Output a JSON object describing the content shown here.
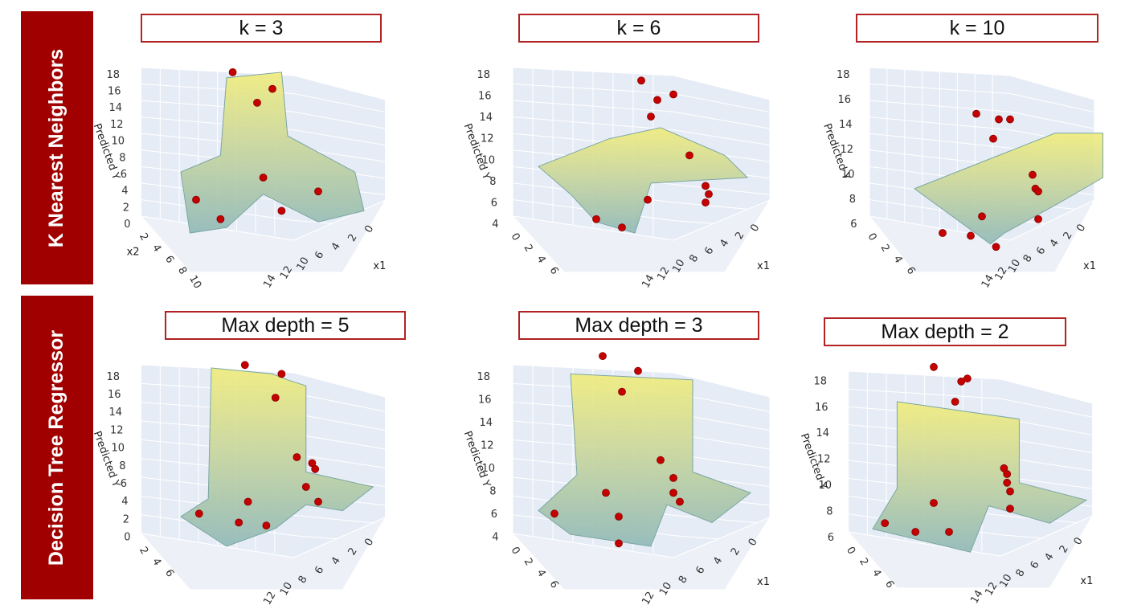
{
  "row_labels": {
    "knn": "K Nearest Neighbors",
    "tree": "Decision Tree Regressor"
  },
  "colors": {
    "row_label_bg": "#a00000",
    "title_border": "#b22222",
    "surface_low": "#8fb8b6",
    "surface_high": "#f0ec7a",
    "point": "#c40000",
    "pane": "#e6ecf5"
  },
  "chart_data": [
    {
      "type": "surface3d",
      "model": "K Nearest Neighbors",
      "title": "k = 3",
      "xlabel": "x1",
      "ylabel": "x2",
      "zlabel": "Predicted Y",
      "z_ticks": [
        "18",
        "16",
        "14",
        "12",
        "10",
        "8",
        "6",
        "4",
        "2",
        "0"
      ],
      "x_ticks": [
        "14",
        "12",
        "10",
        "6",
        "4",
        "2",
        "0"
      ],
      "y_ticks": [
        "2",
        "4",
        "6",
        "8",
        "10"
      ]
    },
    {
      "type": "surface3d",
      "model": "K Nearest Neighbors",
      "title": "k = 6",
      "xlabel": "x1",
      "ylabel": "",
      "zlabel": "Predicted Y",
      "z_ticks": [
        "18",
        "16",
        "14",
        "12",
        "10",
        "8",
        "6",
        "4"
      ],
      "x_ticks": [
        "14",
        "12",
        "10",
        "8",
        "6",
        "4",
        "2",
        "0"
      ],
      "y_ticks": [
        "0",
        "2",
        "4",
        "6"
      ]
    },
    {
      "type": "surface3d",
      "model": "K Nearest Neighbors",
      "title": "k = 10",
      "xlabel": "x1",
      "ylabel": "",
      "zlabel": "Predicted Y",
      "z_ticks": [
        "18",
        "16",
        "14",
        "12",
        "10",
        "8",
        "6"
      ],
      "x_ticks": [
        "14",
        "12",
        "10",
        "8",
        "6",
        "4",
        "2",
        "0"
      ],
      "y_ticks": [
        "0",
        "2",
        "4",
        "6"
      ]
    },
    {
      "type": "surface3d",
      "model": "Decision Tree Regressor",
      "title": "Max depth = 5",
      "xlabel": "",
      "ylabel": "",
      "zlabel": "Predicted Y",
      "z_ticks": [
        "18",
        "16",
        "14",
        "12",
        "10",
        "8",
        "6",
        "4",
        "2",
        "0"
      ],
      "x_ticks": [
        "12",
        "10",
        "8",
        "6",
        "4",
        "2",
        "0"
      ],
      "y_ticks": [
        "2",
        "4",
        "6"
      ]
    },
    {
      "type": "surface3d",
      "model": "Decision Tree Regressor",
      "title": "Max depth = 3",
      "xlabel": "x1",
      "ylabel": "",
      "zlabel": "Predicted Y",
      "z_ticks": [
        "18",
        "16",
        "14",
        "12",
        "10",
        "8",
        "6",
        "4"
      ],
      "x_ticks": [
        "12",
        "10",
        "8",
        "6",
        "4",
        "2",
        "0"
      ],
      "y_ticks": [
        "0",
        "2",
        "4",
        "6"
      ]
    },
    {
      "type": "surface3d",
      "model": "Decision Tree Regressor",
      "title": "Max depth = 2",
      "xlabel": "x1",
      "ylabel": "",
      "zlabel": "Predicted Y",
      "z_ticks": [
        "18",
        "16",
        "14",
        "12",
        "10",
        "8",
        "6"
      ],
      "x_ticks": [
        "14",
        "12",
        "10",
        "8",
        "6",
        "4",
        "2",
        "0"
      ],
      "y_ticks": [
        "0",
        "2",
        "4",
        "6"
      ]
    }
  ]
}
